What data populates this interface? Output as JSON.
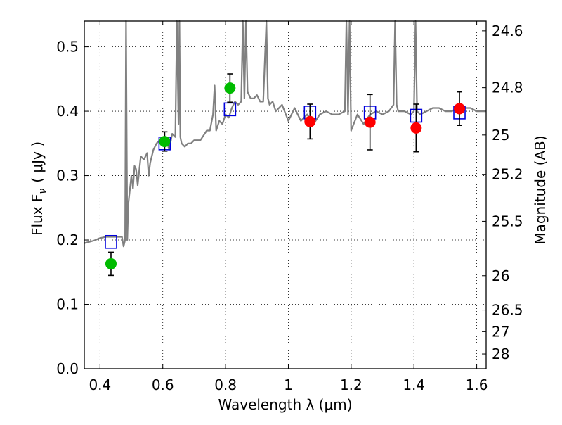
{
  "chart_data": {
    "type": "scatter",
    "xlabel": "Wavelength  λ (μm)",
    "ylabel_left": "Flux  F",
    "ylabel_left_sub": "ν",
    "ylabel_left_units": "( μJy )",
    "ylabel_right": "Magnitude (AB)",
    "xlim": [
      0.35,
      1.63
    ],
    "ylim": [
      0.0,
      0.54
    ],
    "x_ticks": [
      0.4,
      0.6,
      0.8,
      1.0,
      1.2,
      1.4,
      1.6
    ],
    "x_tick_labels": [
      "0.4",
      "0.6",
      "0.8",
      "1",
      "1.2",
      "1.4",
      "1.6"
    ],
    "y_ticks": [
      0.0,
      0.1,
      0.2,
      0.3,
      0.4,
      0.5
    ],
    "y_tick_labels": [
      "0.0",
      "0.1",
      "0.2",
      "0.3",
      "0.4",
      "0.5"
    ],
    "right_ticks": [
      {
        "label": "24.6",
        "mag": 24.6
      },
      {
        "label": "24.8",
        "mag": 24.8
      },
      {
        "label": "25",
        "mag": 25.0
      },
      {
        "label": "25.2",
        "mag": 25.2
      },
      {
        "label": "25.5",
        "mag": 25.5
      },
      {
        "label": "26",
        "mag": 26.0
      },
      {
        "label": "26.5",
        "mag": 26.5
      },
      {
        "label": "27",
        "mag": 27.0
      },
      {
        "label": "28",
        "mag": 28.0
      }
    ],
    "grid": true,
    "colors": {
      "spectrum": "#808080",
      "ground_points": "#00bb00",
      "space_points": "#ff0000",
      "model_boxes": "#0000dd",
      "errorbars": "#000000"
    },
    "model_spectrum": {
      "x": [
        0.35,
        0.38,
        0.4,
        0.42,
        0.44,
        0.46,
        0.47,
        0.475,
        0.48,
        0.483,
        0.487,
        0.49,
        0.5,
        0.505,
        0.51,
        0.515,
        0.52,
        0.53,
        0.54,
        0.55,
        0.555,
        0.56,
        0.57,
        0.58,
        0.59,
        0.6,
        0.61,
        0.62,
        0.63,
        0.64,
        0.645,
        0.65,
        0.653,
        0.656,
        0.66,
        0.67,
        0.68,
        0.69,
        0.7,
        0.72,
        0.74,
        0.75,
        0.76,
        0.765,
        0.77,
        0.78,
        0.79,
        0.8,
        0.81,
        0.82,
        0.83,
        0.84,
        0.85,
        0.855,
        0.86,
        0.865,
        0.87,
        0.88,
        0.89,
        0.9,
        0.91,
        0.92,
        0.93,
        0.935,
        0.94,
        0.95,
        0.96,
        0.98,
        1.0,
        1.02,
        1.04,
        1.06,
        1.08,
        1.1,
        1.12,
        1.14,
        1.16,
        1.18,
        1.185,
        1.19,
        1.195,
        1.2,
        1.22,
        1.24,
        1.26,
        1.28,
        1.3,
        1.32,
        1.335,
        1.34,
        1.345,
        1.35,
        1.37,
        1.39,
        1.4,
        1.405,
        1.41,
        1.42,
        1.44,
        1.46,
        1.48,
        1.5,
        1.52,
        1.54,
        1.56,
        1.58,
        1.6,
        1.63
      ],
      "y": [
        0.195,
        0.199,
        0.203,
        0.205,
        0.205,
        0.205,
        0.205,
        0.19,
        0.2,
        0.54,
        0.2,
        0.255,
        0.3,
        0.28,
        0.315,
        0.31,
        0.285,
        0.33,
        0.325,
        0.335,
        0.3,
        0.32,
        0.34,
        0.35,
        0.355,
        0.35,
        0.36,
        0.34,
        0.365,
        0.36,
        0.54,
        0.38,
        0.54,
        0.36,
        0.35,
        0.345,
        0.35,
        0.35,
        0.355,
        0.355,
        0.37,
        0.37,
        0.395,
        0.44,
        0.37,
        0.385,
        0.38,
        0.395,
        0.39,
        0.405,
        0.415,
        0.41,
        0.415,
        0.54,
        0.42,
        0.54,
        0.43,
        0.42,
        0.42,
        0.425,
        0.415,
        0.415,
        0.54,
        0.42,
        0.41,
        0.415,
        0.4,
        0.41,
        0.385,
        0.405,
        0.385,
        0.395,
        0.38,
        0.395,
        0.4,
        0.395,
        0.395,
        0.4,
        0.54,
        0.395,
        0.54,
        0.37,
        0.395,
        0.38,
        0.395,
        0.4,
        0.395,
        0.4,
        0.41,
        0.54,
        0.41,
        0.4,
        0.4,
        0.395,
        0.4,
        0.54,
        0.4,
        0.395,
        0.4,
        0.405,
        0.405,
        0.4,
        0.4,
        0.405,
        0.405,
        0.405,
        0.4,
        0.4
      ]
    },
    "model_photometry": {
      "x": [
        0.435,
        0.606,
        0.814,
        1.069,
        1.26,
        1.407,
        1.545
      ],
      "y": [
        0.197,
        0.35,
        0.403,
        0.398,
        0.398,
        0.393,
        0.398
      ]
    },
    "ground_photometry": {
      "x": [
        0.435,
        0.606,
        0.814
      ],
      "y": [
        0.163,
        0.353,
        0.436
      ],
      "yerr": [
        0.018,
        0.015,
        0.022
      ]
    },
    "space_photometry": {
      "x": [
        1.069,
        1.26,
        1.407,
        1.545
      ],
      "y": [
        0.384,
        0.383,
        0.374,
        0.404
      ],
      "yerr": [
        0.027,
        0.043,
        0.037,
        0.026
      ]
    }
  }
}
